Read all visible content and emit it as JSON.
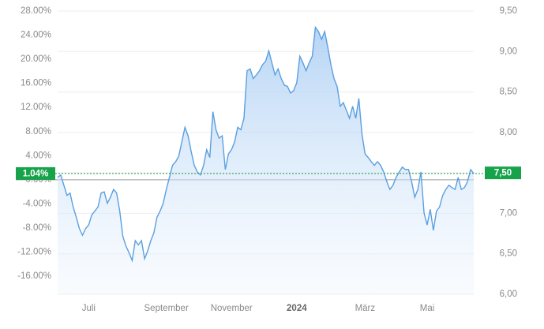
{
  "chart_data": {
    "type": "line",
    "series": [
      {
        "color": "#5a9fe0",
        "values": [
          0.4,
          0.8,
          -0.9,
          -2.6,
          -2.2,
          -4.5,
          -6.2,
          -8.1,
          -9.2,
          -8.1,
          -7.5,
          -5.8,
          -5.2,
          -4.5,
          -2.2,
          -2.0,
          -3.9,
          -2.9,
          -1.6,
          -2.2,
          -5.2,
          -9.4,
          -11.0,
          -12.1,
          -13.4,
          -10.1,
          -10.8,
          -10.1,
          -13.1,
          -11.8,
          -10.1,
          -8.8,
          -6.2,
          -5.2,
          -3.9,
          -1.6,
          0.4,
          2.4,
          3.0,
          3.9,
          6.3,
          8.7,
          7.3,
          4.7,
          2.4,
          1.3,
          0.8,
          2.4,
          5.0,
          3.7,
          11.3,
          8.3,
          6.9,
          7.3,
          1.7,
          4.3,
          5.0,
          6.3,
          8.7,
          8.3,
          10.2,
          18.1,
          18.4,
          16.8,
          17.4,
          18.1,
          19.1,
          19.7,
          21.4,
          19.4,
          17.4,
          18.4,
          16.8,
          15.7,
          15.5,
          14.4,
          14.8,
          16.1,
          20.5,
          19.4,
          18.1,
          19.4,
          20.5,
          25.3,
          24.6,
          23.3,
          24.6,
          22.0,
          19.1,
          16.8,
          15.5,
          12.2,
          12.8,
          11.5,
          10.2,
          12.2,
          10.2,
          13.5,
          7.6,
          4.3,
          3.7,
          3.0,
          2.4,
          3.0,
          2.4,
          1.3,
          -0.3,
          -1.6,
          -0.9,
          0.4,
          1.3,
          2.1,
          1.7,
          1.7,
          -0.3,
          -2.9,
          -1.6,
          1.3,
          -5.5,
          -7.5,
          -4.9,
          -8.4,
          -5.2,
          -4.5,
          -2.6,
          -1.6,
          -0.9,
          -1.3,
          -1.6,
          0.4,
          -1.6,
          -1.3,
          -0.3,
          1.7,
          1.04
        ]
      }
    ],
    "xticks": [
      {
        "value": 10,
        "label": "Juli"
      },
      {
        "value": 35,
        "label": "September"
      },
      {
        "value": 56,
        "label": "November"
      },
      {
        "value": 77,
        "label": "2024"
      },
      {
        "value": 99,
        "label": "März"
      },
      {
        "value": 119,
        "label": "Mai"
      }
    ],
    "ylim": [
      -19,
      28
    ],
    "yticks": [
      {
        "value": 28,
        "label": "28.00%"
      },
      {
        "value": 24,
        "label": "24.00%"
      },
      {
        "value": 20,
        "label": "20.00%"
      },
      {
        "value": 16,
        "label": "16.00%"
      },
      {
        "value": 12,
        "label": "12.00%"
      },
      {
        "value": 8,
        "label": "8.00%"
      },
      {
        "value": 4,
        "label": "4.00%"
      },
      {
        "value": 0,
        "label": "0.00%"
      },
      {
        "value": -4,
        "label": "-4.00%"
      },
      {
        "value": -8,
        "label": "-8.00%"
      },
      {
        "value": -12,
        "label": "-12.00%"
      },
      {
        "value": -16,
        "label": "-16.00%"
      }
    ],
    "y2lim": [
      6,
      9.5
    ],
    "y2ticks": [
      {
        "value": 9.5,
        "label": "9,50"
      },
      {
        "value": 9,
        "label": "9,00"
      },
      {
        "value": 8.5,
        "label": "8,50"
      },
      {
        "value": 8,
        "label": "8,00"
      },
      {
        "value": 7.5,
        "label": "7,50"
      },
      {
        "value": 7,
        "label": "7,00"
      },
      {
        "value": 6.5,
        "label": "6,50"
      },
      {
        "value": 6,
        "label": "6,00"
      }
    ],
    "current": {
      "value": 1.04,
      "label": "1.04%"
    },
    "current_y2": {
      "value": 7.5,
      "label": "7,50"
    },
    "grid": true
  }
}
